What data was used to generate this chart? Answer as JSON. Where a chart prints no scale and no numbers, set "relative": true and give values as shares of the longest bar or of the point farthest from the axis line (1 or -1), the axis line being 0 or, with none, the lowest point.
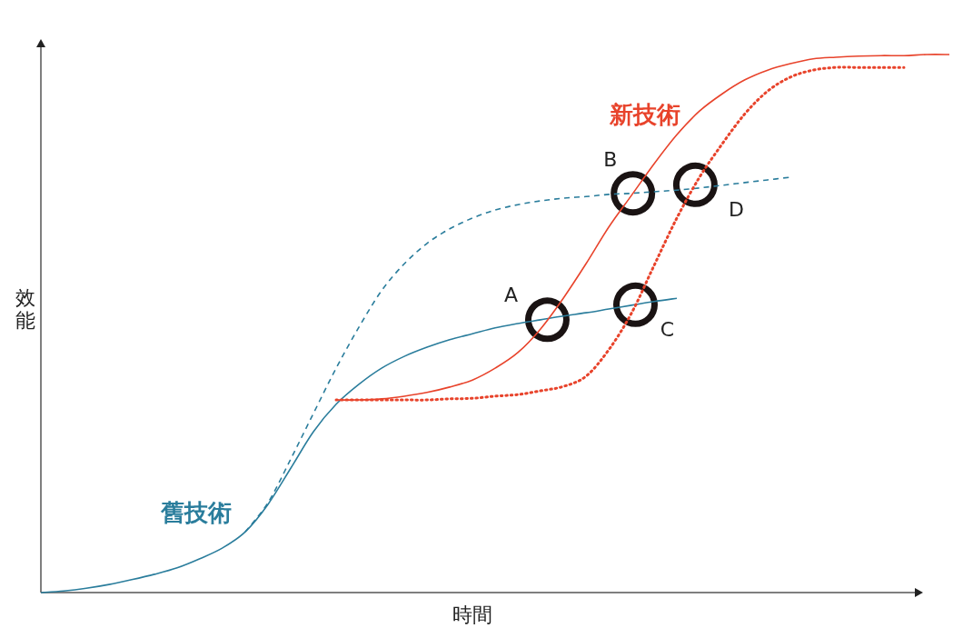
{
  "chart_data": {
    "type": "line",
    "relative": true,
    "xlabel": "時間",
    "ylabel": "效能",
    "categories": [
      null,
      null,
      null,
      null,
      null,
      null,
      null,
      null,
      null,
      null,
      null,
      null,
      null,
      null,
      null,
      null,
      null,
      null,
      null,
      null,
      null,
      null,
      null,
      null,
      null,
      null,
      null,
      null,
      null,
      null,
      null,
      null,
      null,
      null,
      null,
      null,
      null,
      null,
      null,
      null,
      null
    ],
    "series": [
      {
        "name": "舊技術",
        "color": "#2a7d9c",
        "line_style": "solid",
        "values": [
          0,
          0.003,
          0.008,
          0.015,
          0.024,
          0.034,
          0.046,
          0.063,
          0.083,
          0.113,
          0.164,
          0.231,
          0.299,
          0.35,
          0.387,
          0.417,
          0.439,
          0.456,
          0.47,
          0.481,
          0.492,
          0.5,
          0.507,
          0.514,
          0.52,
          0.527,
          0.534,
          0.541,
          0.547,
          null,
          null,
          null,
          null,
          null,
          null,
          null,
          null,
          null,
          null,
          null,
          null
        ]
      },
      {
        "color": "#2a7d9c",
        "line_style": "dashed",
        "values": [
          null,
          null,
          null,
          null,
          null,
          null,
          null,
          null,
          null,
          0.113,
          0.167,
          0.248,
          0.333,
          0.417,
          0.493,
          0.561,
          0.611,
          0.649,
          0.676,
          0.696,
          0.711,
          0.721,
          0.728,
          0.733,
          0.736,
          0.74,
          0.742,
          0.745,
          0.748,
          0.752,
          0.757,
          0.762,
          0.767,
          0.772,
          null,
          null,
          null,
          null,
          null,
          null,
          null
        ]
      },
      {
        "name": "新技術",
        "color": "#e8432b",
        "line_style": "solid",
        "values": [
          null,
          null,
          null,
          null,
          null,
          null,
          null,
          null,
          null,
          null,
          null,
          null,
          null,
          0.358,
          0.358,
          0.36,
          0.365,
          0.372,
          0.382,
          0.395,
          0.417,
          0.446,
          0.49,
          0.547,
          0.611,
          0.679,
          0.738,
          0.797,
          0.851,
          0.895,
          0.927,
          0.953,
          0.971,
          0.983,
          0.992,
          0.995,
          0.997,
          0.998,
          0.998,
          1,
          1
        ]
      },
      {
        "color": "#e8432b",
        "line_style": "dotted",
        "values": [
          null,
          null,
          null,
          null,
          null,
          null,
          null,
          null,
          null,
          null,
          null,
          null,
          null,
          0.358,
          0.358,
          0.358,
          0.358,
          0.358,
          0.36,
          0.361,
          0.365,
          0.368,
          0.375,
          0.383,
          0.402,
          0.451,
          0.519,
          0.608,
          0.696,
          0.772,
          0.834,
          0.89,
          0.932,
          0.958,
          0.971,
          0.976,
          0.976,
          0.976,
          0.976,
          null,
          null
        ]
      }
    ],
    "annotations": [
      {
        "text": "A",
        "y": 0.507
      },
      {
        "text": "B",
        "y": 0.742
      },
      {
        "text": "C",
        "y": 0.535
      },
      {
        "text": "D",
        "y": 0.758
      }
    ]
  }
}
